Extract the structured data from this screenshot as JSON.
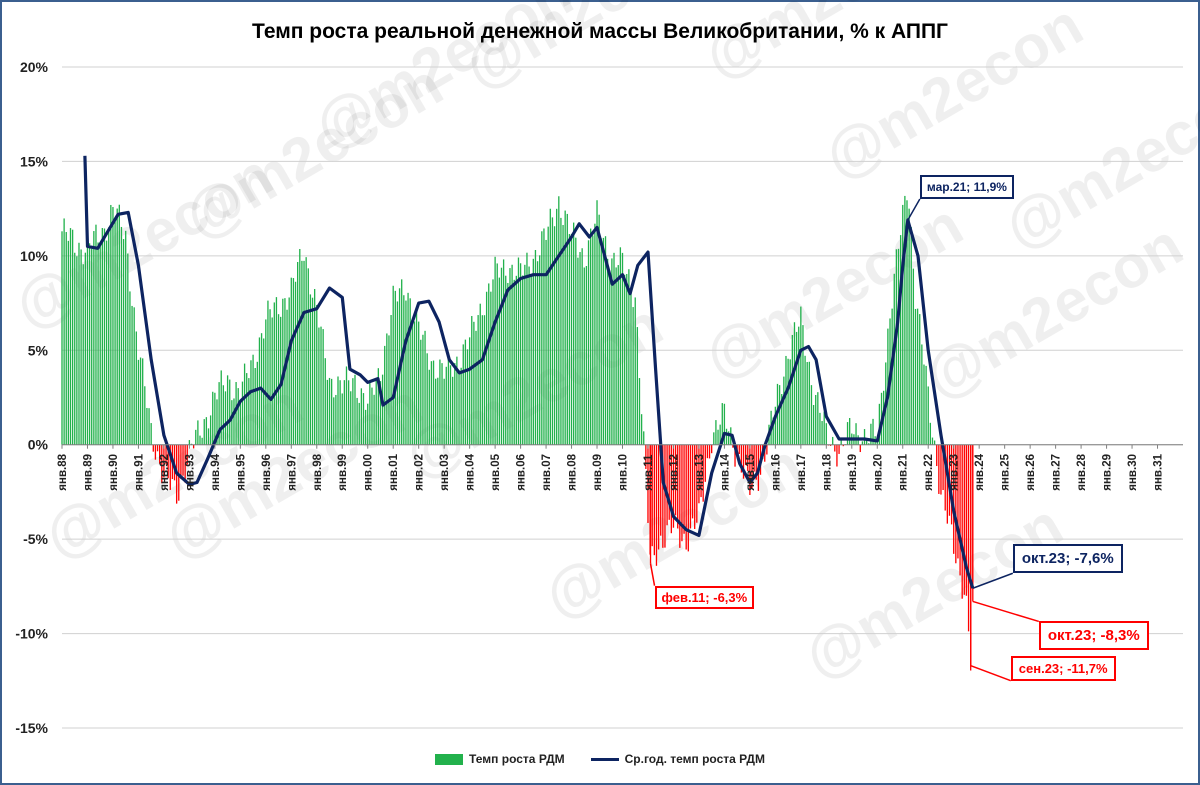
{
  "chart_data": {
    "type": "bar",
    "title": "Темп роста реальной денежной массы Великобритании, % к АППГ",
    "y_axis": {
      "min": -15,
      "max": 20,
      "step": 5,
      "tick_labels": [
        "20%",
        "15%",
        "10%",
        "5%",
        "0%",
        "-5%",
        "-10%",
        "-15%"
      ]
    },
    "x_tick_labels": [
      "янв.88",
      "янв.89",
      "янв.90",
      "янв.91",
      "янв.92",
      "янв.93",
      "янв.94",
      "янв.95",
      "янв.96",
      "янв.97",
      "янв.98",
      "янв.99",
      "янв.00",
      "янв.01",
      "янв.02",
      "янв.03",
      "янв.04",
      "янв.05",
      "янв.06",
      "янв.07",
      "янв.08",
      "янв.09",
      "янв.10",
      "янв.11",
      "янв.12",
      "янв.13",
      "янв.14",
      "янв.15",
      "янв.16",
      "янв.17",
      "янв.18",
      "янв.19",
      "янв.20",
      "янв.21",
      "янв.22",
      "янв.23",
      "янв.24",
      "янв.25",
      "янв.26",
      "янв.27",
      "янв.28",
      "янв.29",
      "янв.30",
      "янв.31"
    ],
    "x_range_years": [
      1988,
      2032
    ],
    "grid": true,
    "legend_position": "bottom",
    "series": [
      {
        "name": "Темп роста РДМ",
        "type": "bar",
        "color": "#22b14c",
        "negative_color": "#ff0000",
        "points": [
          [
            1988.0,
            11.3
          ],
          [
            1988.5,
            10.6
          ],
          [
            1989.0,
            10.4
          ],
          [
            1989.5,
            11.0
          ],
          [
            1990.0,
            12.5
          ],
          [
            1990.5,
            11.0
          ],
          [
            1991.0,
            5.0
          ],
          [
            1991.5,
            0.8
          ],
          [
            1992.0,
            -1.8
          ],
          [
            1992.5,
            -2.6
          ],
          [
            1993.0,
            -0.5
          ],
          [
            1993.5,
            1.0
          ],
          [
            1994.0,
            2.5
          ],
          [
            1994.5,
            3.5
          ],
          [
            1995.0,
            2.7
          ],
          [
            1995.5,
            4.5
          ],
          [
            1996.0,
            6.5
          ],
          [
            1996.5,
            7.5
          ],
          [
            1997.0,
            8.0
          ],
          [
            1997.5,
            10.5
          ],
          [
            1998.0,
            7.0
          ],
          [
            1998.5,
            3.5
          ],
          [
            1999.0,
            3.0
          ],
          [
            1999.5,
            3.5
          ],
          [
            2000.0,
            2.0
          ],
          [
            2000.5,
            4.0
          ],
          [
            2001.0,
            7.5
          ],
          [
            2001.5,
            8.5
          ],
          [
            2002.0,
            6.0
          ],
          [
            2002.5,
            4.5
          ],
          [
            2003.0,
            3.7
          ],
          [
            2003.5,
            4.5
          ],
          [
            2004.0,
            5.5
          ],
          [
            2004.5,
            7.5
          ],
          [
            2005.0,
            9.0
          ],
          [
            2005.5,
            9.5
          ],
          [
            2006.0,
            9.0
          ],
          [
            2006.5,
            10.0
          ],
          [
            2007.0,
            11.0
          ],
          [
            2007.5,
            13.0
          ],
          [
            2008.0,
            11.0
          ],
          [
            2008.5,
            10.0
          ],
          [
            2009.0,
            12.0
          ],
          [
            2009.5,
            10.0
          ],
          [
            2010.0,
            9.5
          ],
          [
            2010.5,
            8.0
          ],
          [
            2011.0,
            -4.0
          ],
          [
            2011.1,
            -6.3
          ],
          [
            2011.5,
            -5.0
          ],
          [
            2012.0,
            -4.5
          ],
          [
            2012.5,
            -5.0
          ],
          [
            2013.0,
            -4.0
          ],
          [
            2013.5,
            0.5
          ],
          [
            2014.0,
            1.5
          ],
          [
            2014.5,
            -0.5
          ],
          [
            2015.0,
            -2.5
          ],
          [
            2015.5,
            -1.0
          ],
          [
            2016.0,
            2.0
          ],
          [
            2016.5,
            5.0
          ],
          [
            2017.0,
            6.5
          ],
          [
            2017.5,
            3.0
          ],
          [
            2018.0,
            0.5
          ],
          [
            2018.5,
            -0.3
          ],
          [
            2019.0,
            0.8
          ],
          [
            2019.5,
            0.5
          ],
          [
            2020.0,
            0.5
          ],
          [
            2020.5,
            7.0
          ],
          [
            2021.0,
            12.0
          ],
          [
            2021.2,
            14.0
          ],
          [
            2021.5,
            8.0
          ],
          [
            2022.0,
            2.5
          ],
          [
            2022.5,
            -2.5
          ],
          [
            2023.0,
            -5.5
          ],
          [
            2023.5,
            -8.0
          ],
          [
            2023.67,
            -11.7
          ],
          [
            2023.75,
            -8.3
          ]
        ]
      },
      {
        "name": "Ср.год. темп роста РДМ",
        "type": "line",
        "color": "#0d2461",
        "points": [
          [
            1988.9,
            15.3
          ],
          [
            1989.0,
            10.5
          ],
          [
            1989.4,
            10.4
          ],
          [
            1989.8,
            11.3
          ],
          [
            1990.2,
            12.2
          ],
          [
            1990.6,
            12.3
          ],
          [
            1991.0,
            9.5
          ],
          [
            1991.5,
            4.5
          ],
          [
            1992.0,
            0.5
          ],
          [
            1992.5,
            -1.5
          ],
          [
            1993.0,
            -2.1
          ],
          [
            1993.3,
            -2.0
          ],
          [
            1993.7,
            -0.8
          ],
          [
            1994.2,
            0.8
          ],
          [
            1994.6,
            1.3
          ],
          [
            1995.0,
            2.3
          ],
          [
            1995.4,
            2.8
          ],
          [
            1995.8,
            3.0
          ],
          [
            1996.2,
            2.4
          ],
          [
            1996.6,
            3.2
          ],
          [
            1997.0,
            5.5
          ],
          [
            1997.5,
            7.0
          ],
          [
            1998.0,
            7.2
          ],
          [
            1998.5,
            8.3
          ],
          [
            1999.0,
            7.8
          ],
          [
            1999.3,
            4.0
          ],
          [
            1999.7,
            3.7
          ],
          [
            2000.0,
            3.3
          ],
          [
            2000.4,
            3.5
          ],
          [
            2000.6,
            2.1
          ],
          [
            2001.0,
            2.5
          ],
          [
            2001.5,
            5.5
          ],
          [
            2002.0,
            7.5
          ],
          [
            2002.4,
            7.6
          ],
          [
            2002.8,
            6.5
          ],
          [
            2003.2,
            4.5
          ],
          [
            2003.6,
            3.8
          ],
          [
            2004.0,
            4.0
          ],
          [
            2004.5,
            4.5
          ],
          [
            2005.0,
            6.5
          ],
          [
            2005.5,
            8.2
          ],
          [
            2006.0,
            8.8
          ],
          [
            2006.5,
            9.0
          ],
          [
            2007.0,
            9.0
          ],
          [
            2007.5,
            10.0
          ],
          [
            2008.0,
            11.0
          ],
          [
            2008.3,
            11.7
          ],
          [
            2008.7,
            11.0
          ],
          [
            2009.0,
            11.5
          ],
          [
            2009.3,
            10.0
          ],
          [
            2009.6,
            8.5
          ],
          [
            2010.0,
            9.0
          ],
          [
            2010.3,
            8.0
          ],
          [
            2010.6,
            9.5
          ],
          [
            2011.0,
            10.2
          ],
          [
            2011.3,
            4.0
          ],
          [
            2011.6,
            -2.0
          ],
          [
            2012.0,
            -3.8
          ],
          [
            2012.5,
            -4.5
          ],
          [
            2013.0,
            -4.8
          ],
          [
            2013.5,
            -1.5
          ],
          [
            2014.0,
            0.6
          ],
          [
            2014.3,
            0.5
          ],
          [
            2014.6,
            -1.0
          ],
          [
            2015.0,
            -2.0
          ],
          [
            2015.3,
            -1.5
          ],
          [
            2015.6,
            0.0
          ],
          [
            2016.0,
            1.5
          ],
          [
            2016.5,
            3.0
          ],
          [
            2017.0,
            5.0
          ],
          [
            2017.3,
            5.2
          ],
          [
            2017.6,
            4.5
          ],
          [
            2018.0,
            1.5
          ],
          [
            2018.5,
            0.3
          ],
          [
            2019.0,
            0.3
          ],
          [
            2019.5,
            0.3
          ],
          [
            2020.0,
            0.2
          ],
          [
            2020.4,
            2.5
          ],
          [
            2020.8,
            6.5
          ],
          [
            2021.0,
            9.5
          ],
          [
            2021.2,
            11.9
          ],
          [
            2021.6,
            10.0
          ],
          [
            2022.0,
            5.0
          ],
          [
            2022.5,
            0.5
          ],
          [
            2023.0,
            -3.5
          ],
          [
            2023.5,
            -6.5
          ],
          [
            2023.75,
            -7.6
          ]
        ]
      }
    ],
    "annotations": [
      {
        "text": "мар.21; 11,9%",
        "x": 2021.2,
        "y": 11.9,
        "color": "#0d2461"
      },
      {
        "text": "фев.11; -6,3%",
        "x": 2011.1,
        "y": -6.3,
        "color": "#ff0000"
      },
      {
        "text": "окт.23; -7,6%",
        "x": 2023.75,
        "y": -7.6,
        "color": "#0d2461"
      },
      {
        "text": "окт.23; -8,3%",
        "x": 2023.75,
        "y": -8.3,
        "color": "#ff0000"
      },
      {
        "text": "сен.23; -11,7%",
        "x": 2023.67,
        "y": -11.7,
        "color": "#ff0000"
      }
    ],
    "watermark": "@m2econ"
  }
}
